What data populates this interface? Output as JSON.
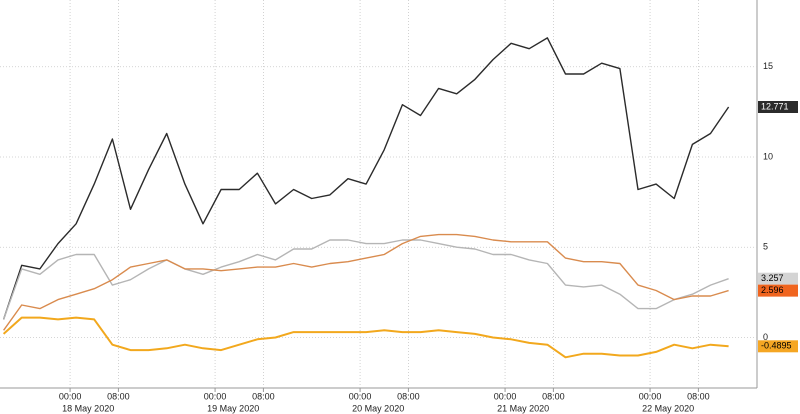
{
  "chart_data": {
    "type": "line",
    "x": [
      -11,
      -8,
      -5,
      -2,
      1,
      4,
      7,
      10,
      13,
      16,
      19,
      22,
      25,
      28,
      31,
      34,
      37,
      40,
      43,
      46,
      49,
      52,
      55,
      58,
      61,
      64,
      67,
      70,
      73,
      76,
      79,
      82,
      85,
      88,
      91,
      94,
      97,
      100,
      103,
      106,
      109
    ],
    "xlim": [
      -11.6,
      113.7
    ],
    "xticks": [
      {
        "value": 0,
        "label": "00:00"
      },
      {
        "value": 8,
        "label": "08:00"
      },
      {
        "value": 24,
        "label": "00:00"
      },
      {
        "value": 32,
        "label": "08:00"
      },
      {
        "value": 48,
        "label": "00:00"
      },
      {
        "value": 56,
        "label": "08:00"
      },
      {
        "value": 72,
        "label": "00:00"
      },
      {
        "value": 80,
        "label": "08:00"
      },
      {
        "value": 96,
        "label": "00:00"
      },
      {
        "value": 104,
        "label": "08:00"
      }
    ],
    "date_labels": [
      {
        "value": 3,
        "label": "18 May 2020"
      },
      {
        "value": 27,
        "label": "19 May 2020"
      },
      {
        "value": 51,
        "label": "20 May 2020"
      },
      {
        "value": 75,
        "label": "21 May 2020"
      },
      {
        "value": 99,
        "label": "22 May 2020"
      }
    ],
    "ylim": [
      -2.8,
      18.7
    ],
    "yticks": [
      0,
      5,
      10,
      15
    ],
    "grid": true,
    "series": [
      {
        "color": "#2b2b2b",
        "end_label": "12.771",
        "label_bg": "#2b2b2b",
        "label_fg": "#ffffff",
        "values": [
          1.0,
          4.0,
          3.8,
          5.2,
          6.3,
          8.5,
          11.0,
          7.1,
          9.3,
          11.3,
          8.5,
          6.3,
          8.2,
          8.2,
          9.1,
          7.4,
          8.2,
          7.7,
          7.9,
          8.8,
          8.5,
          10.4,
          12.9,
          12.3,
          13.8,
          13.5,
          14.3,
          15.4,
          16.3,
          16.0,
          16.6,
          14.6,
          14.6,
          15.2,
          14.9,
          8.2,
          8.5,
          7.7,
          10.7,
          11.3,
          12.771
        ]
      },
      {
        "color": "#b5b5b5",
        "end_label": "3.257",
        "label_bg": "#d4d4d4",
        "label_fg": "#000000",
        "values": [
          1.0,
          3.8,
          3.5,
          4.3,
          4.6,
          4.6,
          2.9,
          3.2,
          3.8,
          4.3,
          3.8,
          3.5,
          3.9,
          4.2,
          4.6,
          4.3,
          4.9,
          4.9,
          5.4,
          5.4,
          5.2,
          5.2,
          5.4,
          5.4,
          5.2,
          5.0,
          4.9,
          4.6,
          4.6,
          4.3,
          4.1,
          2.9,
          2.8,
          2.9,
          2.4,
          1.6,
          1.6,
          2.1,
          2.4,
          2.9,
          3.257
        ]
      },
      {
        "color": "#d98b4e",
        "end_label": "2.596",
        "label_bg": "#f0651f",
        "label_fg": "#000000",
        "values": [
          0.4,
          1.8,
          1.6,
          2.1,
          2.4,
          2.7,
          3.2,
          3.9,
          4.1,
          4.3,
          3.8,
          3.8,
          3.7,
          3.8,
          3.9,
          3.9,
          4.1,
          3.9,
          4.1,
          4.2,
          4.4,
          4.6,
          5.2,
          5.6,
          5.7,
          5.7,
          5.6,
          5.4,
          5.3,
          5.3,
          5.3,
          4.4,
          4.2,
          4.2,
          4.1,
          2.9,
          2.6,
          2.1,
          2.3,
          2.3,
          2.596
        ]
      },
      {
        "color": "#f2a81d",
        "end_label": "-0.4895",
        "label_bg": "#f5a623",
        "label_fg": "#000000",
        "values": [
          0.2,
          1.1,
          1.1,
          1.0,
          1.1,
          1.0,
          -0.4,
          -0.7,
          -0.7,
          -0.6,
          -0.4,
          -0.6,
          -0.7,
          -0.4,
          -0.1,
          0,
          0.3,
          0.3,
          0.3,
          0.3,
          0.3,
          0.4,
          0.3,
          0.3,
          0.4,
          0.3,
          0.2,
          0,
          -0.1,
          -0.3,
          -0.4,
          -1.1,
          -0.9,
          -0.9,
          -1.0,
          -1.0,
          -0.8,
          -0.4,
          -0.6,
          -0.4,
          -0.4895
        ]
      }
    ]
  }
}
